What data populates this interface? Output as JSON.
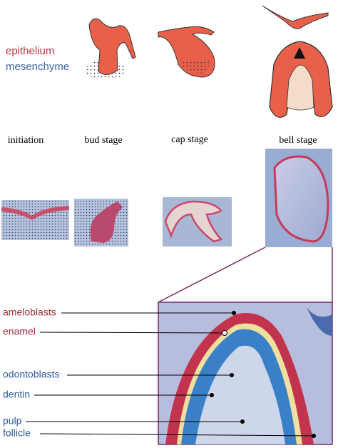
{
  "legend": {
    "epithelium": "epithelium",
    "mesenchyme": "mesenchyme"
  },
  "stages": [
    "initiation",
    "bud stage",
    "cap stage",
    "bell stage"
  ],
  "labels": {
    "red": [
      "ameloblasts",
      "enamel"
    ],
    "blue": [
      "odontoblasts",
      "dentin",
      "pulp",
      "follicle"
    ]
  }
}
